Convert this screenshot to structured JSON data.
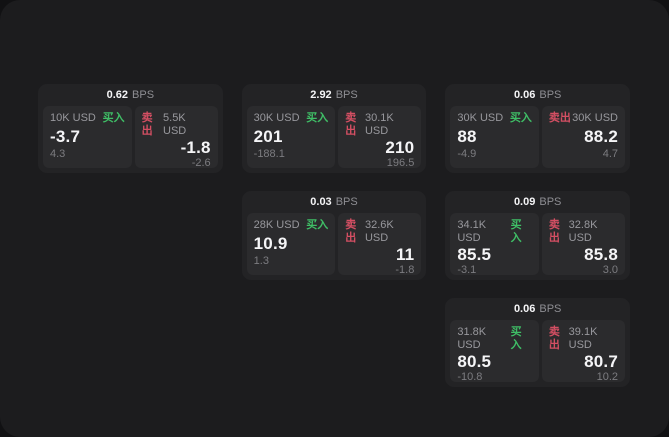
{
  "labels": {
    "buy": "买入",
    "sell": "卖出",
    "bps": "BPS"
  },
  "colors": {
    "window_bg": "#1c1c1e",
    "outer_bg": "#111113",
    "card_bg": "#232325",
    "panel_bg": "#2b2b2d",
    "buy_green": "#3fbe66",
    "sell_red": "#d44f63"
  },
  "cards": [
    {
      "col": 1,
      "row": 1,
      "spread": "0.62",
      "buy": {
        "size": "10K USD",
        "price": "-3.7",
        "delta": "4.3"
      },
      "sell": {
        "size": "5.5K USD",
        "price": "-1.8",
        "delta": "-2.6"
      }
    },
    {
      "col": 2,
      "row": 1,
      "spread": "2.92",
      "buy": {
        "size": "30K USD",
        "price": "201",
        "delta": "-188.1"
      },
      "sell": {
        "size": "30.1K USD",
        "price": "210",
        "delta": "196.5"
      }
    },
    {
      "col": 3,
      "row": 1,
      "spread": "0.06",
      "buy": {
        "size": "30K USD",
        "price": "88",
        "delta": "-4.9"
      },
      "sell": {
        "size": "30K USD",
        "price": "88.2",
        "delta": "4.7"
      }
    },
    {
      "col": 2,
      "row": 2,
      "spread": "0.03",
      "buy": {
        "size": "28K USD",
        "price": "10.9",
        "delta": "1.3"
      },
      "sell": {
        "size": "32.6K USD",
        "price": "11",
        "delta": "-1.8"
      }
    },
    {
      "col": 3,
      "row": 2,
      "spread": "0.09",
      "buy": {
        "size": "34.1K USD",
        "price": "85.5",
        "delta": "-3.1"
      },
      "sell": {
        "size": "32.8K USD",
        "price": "85.8",
        "delta": "3.0"
      }
    },
    {
      "col": 3,
      "row": 3,
      "spread": "0.06",
      "buy": {
        "size": "31.8K USD",
        "price": "80.5",
        "delta": "-10.8"
      },
      "sell": {
        "size": "39.1K USD",
        "price": "80.7",
        "delta": "10.2"
      }
    }
  ]
}
